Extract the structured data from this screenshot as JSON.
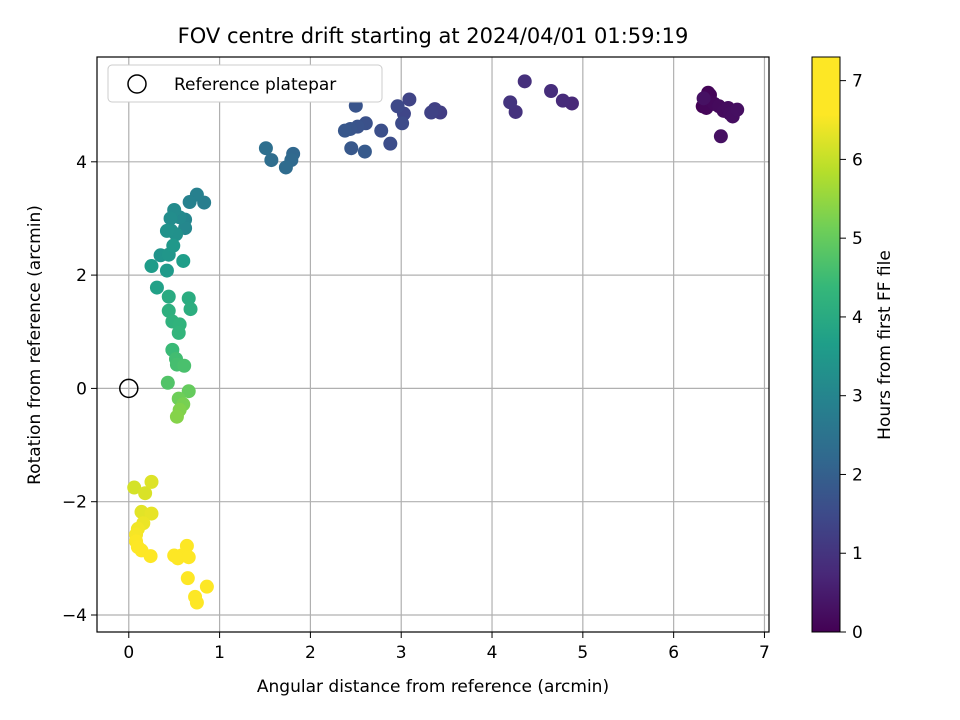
{
  "chart_data": {
    "type": "scatter",
    "title": "FOV centre drift starting at 2024/04/01 01:59:19",
    "xlabel": "Angular distance from reference (arcmin)",
    "ylabel": "Rotation from reference (arcmin)",
    "xlim": [
      -0.35,
      7.05
    ],
    "ylim": [
      -4.3,
      5.85
    ],
    "xticks": [
      0,
      1,
      2,
      3,
      4,
      5,
      6,
      7
    ],
    "yticks": [
      -4,
      -2,
      0,
      2,
      4
    ],
    "grid": true,
    "legend": {
      "placement": "top-left",
      "entries": [
        "Reference platepar"
      ]
    },
    "reference_point": {
      "x": 0,
      "y": 0,
      "label": "Reference platepar"
    },
    "colorbar": {
      "label": "Hours from first FF file",
      "min": 0,
      "max": 7.3,
      "ticks": [
        0,
        1,
        2,
        3,
        4,
        5,
        6,
        7
      ],
      "colormap": "viridis"
    },
    "points": [
      {
        "x": 6.32,
        "y": 4.98,
        "c": 0.02
      },
      {
        "x": 6.35,
        "y": 5.08,
        "c": 0.04
      },
      {
        "x": 6.38,
        "y": 5.22,
        "c": 0.06
      },
      {
        "x": 6.4,
        "y": 5.18,
        "c": 0.08
      },
      {
        "x": 6.36,
        "y": 4.95,
        "c": 0.1
      },
      {
        "x": 6.42,
        "y": 5.05,
        "c": 0.12
      },
      {
        "x": 6.45,
        "y": 5.02,
        "c": 0.14
      },
      {
        "x": 6.5,
        "y": 4.98,
        "c": 0.16
      },
      {
        "x": 6.55,
        "y": 4.9,
        "c": 0.18
      },
      {
        "x": 6.6,
        "y": 4.95,
        "c": 0.2
      },
      {
        "x": 6.62,
        "y": 4.85,
        "c": 0.22
      },
      {
        "x": 6.65,
        "y": 4.8,
        "c": 0.24
      },
      {
        "x": 6.7,
        "y": 4.92,
        "c": 0.26
      },
      {
        "x": 6.52,
        "y": 4.45,
        "c": 0.28
      },
      {
        "x": 6.33,
        "y": 5.12,
        "c": 0.3
      },
      {
        "x": 4.88,
        "y": 5.03,
        "c": 0.75
      },
      {
        "x": 4.78,
        "y": 5.08,
        "c": 0.8
      },
      {
        "x": 4.65,
        "y": 5.25,
        "c": 0.85
      },
      {
        "x": 4.36,
        "y": 5.42,
        "c": 0.9
      },
      {
        "x": 4.26,
        "y": 4.88,
        "c": 0.95
      },
      {
        "x": 4.2,
        "y": 5.05,
        "c": 1.0
      },
      {
        "x": 3.43,
        "y": 4.87,
        "c": 1.2
      },
      {
        "x": 3.37,
        "y": 4.93,
        "c": 1.25
      },
      {
        "x": 3.33,
        "y": 4.87,
        "c": 1.3
      },
      {
        "x": 3.09,
        "y": 5.1,
        "c": 1.35
      },
      {
        "x": 3.03,
        "y": 4.85,
        "c": 1.4
      },
      {
        "x": 2.96,
        "y": 4.98,
        "c": 1.45
      },
      {
        "x": 3.01,
        "y": 4.68,
        "c": 1.5
      },
      {
        "x": 2.88,
        "y": 4.32,
        "c": 1.55
      },
      {
        "x": 2.78,
        "y": 4.55,
        "c": 1.6
      },
      {
        "x": 2.61,
        "y": 4.68,
        "c": 1.65
      },
      {
        "x": 2.52,
        "y": 4.62,
        "c": 1.7
      },
      {
        "x": 2.5,
        "y": 4.99,
        "c": 1.72
      },
      {
        "x": 2.44,
        "y": 4.58,
        "c": 1.75
      },
      {
        "x": 2.38,
        "y": 4.55,
        "c": 1.78
      },
      {
        "x": 2.45,
        "y": 4.24,
        "c": 1.82
      },
      {
        "x": 2.6,
        "y": 4.18,
        "c": 1.85
      },
      {
        "x": 1.81,
        "y": 4.14,
        "c": 2.2
      },
      {
        "x": 1.79,
        "y": 4.03,
        "c": 2.25
      },
      {
        "x": 1.73,
        "y": 3.9,
        "c": 2.3
      },
      {
        "x": 1.57,
        "y": 4.03,
        "c": 2.35
      },
      {
        "x": 1.51,
        "y": 4.24,
        "c": 2.4
      },
      {
        "x": 0.83,
        "y": 3.28,
        "c": 2.8
      },
      {
        "x": 0.75,
        "y": 3.42,
        "c": 2.85
      },
      {
        "x": 0.67,
        "y": 3.29,
        "c": 2.9
      },
      {
        "x": 0.62,
        "y": 2.98,
        "c": 3.0
      },
      {
        "x": 0.62,
        "y": 2.83,
        "c": 3.05
      },
      {
        "x": 0.56,
        "y": 3.02,
        "c": 3.1
      },
      {
        "x": 0.5,
        "y": 3.15,
        "c": 3.15
      },
      {
        "x": 0.46,
        "y": 3.0,
        "c": 3.2
      },
      {
        "x": 0.47,
        "y": 2.78,
        "c": 3.25
      },
      {
        "x": 0.52,
        "y": 2.72,
        "c": 3.3
      },
      {
        "x": 0.42,
        "y": 2.78,
        "c": 3.35
      },
      {
        "x": 0.35,
        "y": 2.35,
        "c": 3.4
      },
      {
        "x": 0.44,
        "y": 2.36,
        "c": 3.45
      },
      {
        "x": 0.49,
        "y": 2.52,
        "c": 3.5
      },
      {
        "x": 0.42,
        "y": 2.08,
        "c": 3.55
      },
      {
        "x": 0.25,
        "y": 2.16,
        "c": 3.6
      },
      {
        "x": 0.6,
        "y": 2.25,
        "c": 3.65
      },
      {
        "x": 0.31,
        "y": 1.78,
        "c": 3.75
      },
      {
        "x": 0.44,
        "y": 1.62,
        "c": 4.0
      },
      {
        "x": 0.66,
        "y": 1.59,
        "c": 4.05
      },
      {
        "x": 0.68,
        "y": 1.4,
        "c": 4.1
      },
      {
        "x": 0.44,
        "y": 1.37,
        "c": 4.15
      },
      {
        "x": 0.48,
        "y": 1.18,
        "c": 4.2
      },
      {
        "x": 0.56,
        "y": 1.13,
        "c": 4.25
      },
      {
        "x": 0.55,
        "y": 0.98,
        "c": 4.3
      },
      {
        "x": 0.48,
        "y": 0.68,
        "c": 4.45
      },
      {
        "x": 0.52,
        "y": 0.52,
        "c": 4.55
      },
      {
        "x": 0.53,
        "y": 0.42,
        "c": 4.6
      },
      {
        "x": 0.61,
        "y": 0.4,
        "c": 4.65
      },
      {
        "x": 0.43,
        "y": 0.1,
        "c": 4.75
      },
      {
        "x": 0.66,
        "y": -0.05,
        "c": 5.0
      },
      {
        "x": 0.55,
        "y": -0.18,
        "c": 5.1
      },
      {
        "x": 0.6,
        "y": -0.28,
        "c": 5.2
      },
      {
        "x": 0.56,
        "y": -0.38,
        "c": 5.3
      },
      {
        "x": 0.53,
        "y": -0.5,
        "c": 5.35
      },
      {
        "x": 0.06,
        "y": -1.75,
        "c": 6.15
      },
      {
        "x": 0.18,
        "y": -1.85,
        "c": 6.2
      },
      {
        "x": 0.25,
        "y": -1.65,
        "c": 6.25
      },
      {
        "x": 0.14,
        "y": -2.18,
        "c": 6.3
      },
      {
        "x": 0.25,
        "y": -2.21,
        "c": 6.35
      },
      {
        "x": 0.16,
        "y": -2.38,
        "c": 6.4
      },
      {
        "x": 0.1,
        "y": -2.48,
        "c": 6.45
      },
      {
        "x": 0.08,
        "y": -2.58,
        "c": 6.5
      },
      {
        "x": 0.08,
        "y": -2.7,
        "c": 6.55
      },
      {
        "x": 0.1,
        "y": -2.8,
        "c": 6.6
      },
      {
        "x": 0.14,
        "y": -2.86,
        "c": 6.65
      },
      {
        "x": 0.24,
        "y": -2.96,
        "c": 6.7
      },
      {
        "x": 0.5,
        "y": -2.95,
        "c": 6.8
      },
      {
        "x": 0.58,
        "y": -2.95,
        "c": 6.85
      },
      {
        "x": 0.64,
        "y": -2.78,
        "c": 6.9
      },
      {
        "x": 0.54,
        "y": -3.0,
        "c": 6.95
      },
      {
        "x": 0.66,
        "y": -2.98,
        "c": 7.0
      },
      {
        "x": 0.65,
        "y": -3.35,
        "c": 7.1
      },
      {
        "x": 0.86,
        "y": -3.5,
        "c": 7.15
      },
      {
        "x": 0.73,
        "y": -3.68,
        "c": 7.2
      },
      {
        "x": 0.75,
        "y": -3.78,
        "c": 7.25
      }
    ]
  }
}
